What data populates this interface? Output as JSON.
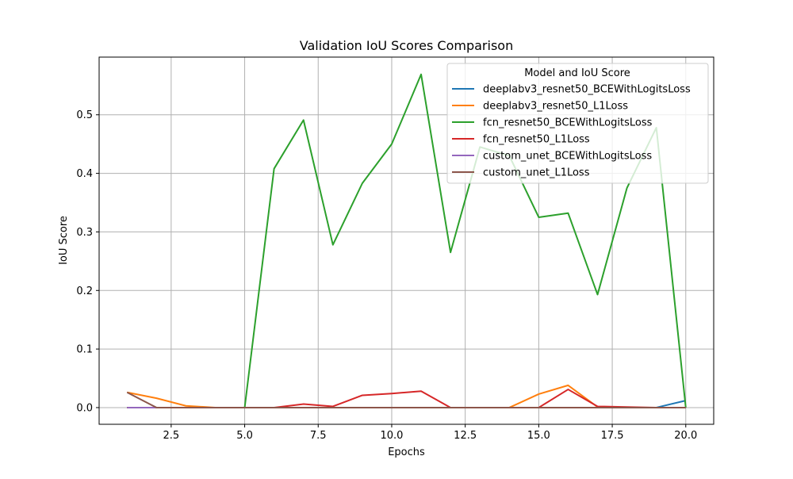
{
  "chart_data": {
    "type": "line",
    "title": "Validation IoU Scores Comparison",
    "xlabel": "Epochs",
    "ylabel": "IoU Score",
    "xlim": [
      0.05,
      20.95
    ],
    "ylim": [
      -0.0285,
      0.5985
    ],
    "xticks": [
      2.5,
      5.0,
      7.5,
      10.0,
      12.5,
      15.0,
      17.5,
      20.0
    ],
    "xtick_labels": [
      "2.5",
      "5.0",
      "7.5",
      "10.0",
      "12.5",
      "15.0",
      "17.5",
      "20.0"
    ],
    "yticks": [
      0.0,
      0.1,
      0.2,
      0.3,
      0.4,
      0.5
    ],
    "ytick_labels": [
      "0.0",
      "0.1",
      "0.2",
      "0.3",
      "0.4",
      "0.5"
    ],
    "grid": true,
    "legend": {
      "title": "Model and IoU Score",
      "placement": "top-right"
    },
    "x": [
      1,
      2,
      3,
      4,
      5,
      6,
      7,
      8,
      9,
      10,
      11,
      12,
      13,
      14,
      15,
      16,
      17,
      18,
      19,
      20
    ],
    "series": [
      {
        "name": "deeplabv3_resnet50_BCEWithLogitsLoss",
        "color": "#1f77b4",
        "values": [
          0,
          0,
          0,
          0,
          0,
          0,
          0,
          0,
          0,
          0,
          0,
          0,
          0,
          0,
          0,
          0,
          0,
          0,
          0,
          0.012
        ]
      },
      {
        "name": "deeplabv3_resnet50_L1Loss",
        "color": "#ff7f0e",
        "values": [
          0.026,
          0.016,
          0.003,
          0,
          0,
          0,
          0,
          0,
          0,
          0,
          0,
          0,
          0,
          0,
          0.023,
          0.038,
          0.001,
          0,
          0,
          0
        ]
      },
      {
        "name": "fcn_resnet50_BCEWithLogitsLoss",
        "color": "#2ca02c",
        "values": [
          0,
          0,
          0,
          0,
          0,
          0.408,
          0.491,
          0.278,
          0.383,
          0.45,
          0.569,
          0.265,
          0.445,
          0.43,
          0.325,
          0.332,
          0.193,
          0.375,
          0.478,
          0
        ]
      },
      {
        "name": "fcn_resnet50_L1Loss",
        "color": "#d62728",
        "values": [
          0,
          0,
          0,
          0,
          0,
          0,
          0.006,
          0.002,
          0.021,
          0.024,
          0.028,
          0,
          0,
          0,
          0,
          0.031,
          0.002,
          0.001,
          0,
          0
        ]
      },
      {
        "name": "custom_unet_BCEWithLogitsLoss",
        "color": "#9467bd",
        "values": [
          0,
          0,
          0,
          0,
          0,
          0,
          0,
          0,
          0,
          0,
          0,
          0,
          0,
          0,
          0,
          0,
          0,
          0,
          0,
          0
        ]
      },
      {
        "name": "custom_unet_L1Loss",
        "color": "#8c564b",
        "values": [
          0.026,
          0,
          0,
          0,
          0,
          0,
          0,
          0,
          0,
          0,
          0,
          0,
          0,
          0,
          0,
          0,
          0,
          0,
          0,
          0
        ]
      }
    ]
  }
}
